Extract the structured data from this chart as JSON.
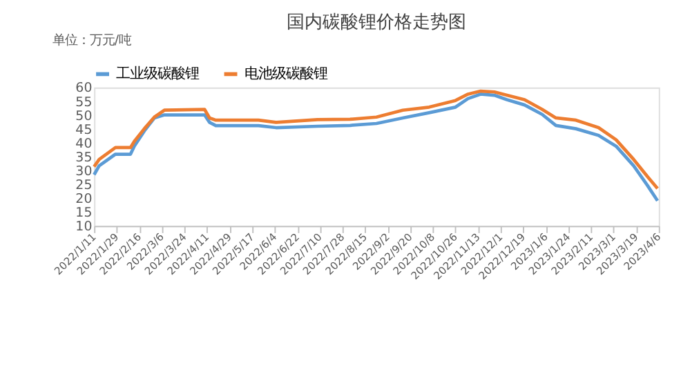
{
  "chart_data": {
    "type": "line",
    "title": "国内碳酸锂价格走势图",
    "annotations": [
      "单位：万元/吨"
    ],
    "x": [
      "2022-01-11",
      "2022-01-15",
      "2022-01-28",
      "2022-02-09",
      "2022-02-12",
      "2022-02-20",
      "2022-02-28",
      "2022-03-08",
      "2022-04-09",
      "2022-04-13",
      "2022-04-18",
      "2022-05-22",
      "2022-06-05",
      "2022-07-08",
      "2022-08-03",
      "2022-08-24",
      "2022-09-14",
      "2022-10-05",
      "2022-10-26",
      "2022-11-05",
      "2022-11-15",
      "2022-11-26",
      "2022-12-06",
      "2022-12-20",
      "2023-01-03",
      "2023-01-14",
      "2023-01-30",
      "2023-02-17",
      "2023-03-03",
      "2023-03-17",
      "2023-03-28",
      "2023-04-05"
    ],
    "series": [
      {
        "name": "工业级碳酸锂",
        "color": "#5b9bd5",
        "values": [
          28.5,
          31.7,
          35.9,
          35.9,
          38.8,
          44.3,
          49,
          50.1,
          50.1,
          47.4,
          46.2,
          46.2,
          45.5,
          46,
          46.3,
          47,
          49,
          50.9,
          52.9,
          56,
          57.6,
          57.2,
          55.6,
          53.7,
          50.3,
          46.3,
          45.1,
          42.7,
          38.8,
          31.7,
          24.6,
          19.1
        ]
      },
      {
        "name": "电池级碳酸锂",
        "color": "#ed7d31",
        "values": [
          31.4,
          34,
          38.3,
          38.3,
          40.5,
          45.1,
          49.3,
          51.8,
          52.1,
          49,
          48.2,
          48.2,
          47.4,
          48.4,
          48.5,
          49.3,
          51.8,
          52.9,
          55.3,
          57.6,
          58.7,
          58.4,
          57.2,
          55.6,
          52.1,
          49,
          48.2,
          45.5,
          41.1,
          34,
          27.8,
          23.5
        ]
      }
    ],
    "xlim": [
      "2022-01-11",
      "2023-04-06"
    ],
    "xticks": [
      {
        "value": "2022-01-11",
        "label": "2022/1/11"
      },
      {
        "value": "2022-01-29",
        "label": "2022/1/29"
      },
      {
        "value": "2022-02-16",
        "label": "2022/2/16"
      },
      {
        "value": "2022-03-06",
        "label": "2022/3/6"
      },
      {
        "value": "2022-03-24",
        "label": "2022/3/24"
      },
      {
        "value": "2022-04-11",
        "label": "2022/4/11"
      },
      {
        "value": "2022-04-29",
        "label": "2022/4/29"
      },
      {
        "value": "2022-05-17",
        "label": "2022/5/17"
      },
      {
        "value": "2022-06-04",
        "label": "2022/6/4"
      },
      {
        "value": "2022-06-22",
        "label": "2022/6/22"
      },
      {
        "value": "2022-07-10",
        "label": "2022/7/10"
      },
      {
        "value": "2022-07-28",
        "label": "2022/7/28"
      },
      {
        "value": "2022-08-15",
        "label": "2022/8/15"
      },
      {
        "value": "2022-09-02",
        "label": "2022/9/2"
      },
      {
        "value": "2022-09-20",
        "label": "2022/9/20"
      },
      {
        "value": "2022-10-08",
        "label": "2022/10/8"
      },
      {
        "value": "2022-10-26",
        "label": "2022/10/26"
      },
      {
        "value": "2022-11-13",
        "label": "2022/11/13"
      },
      {
        "value": "2022-12-01",
        "label": "2022/12/1"
      },
      {
        "value": "2022-12-19",
        "label": "2022/12/19"
      },
      {
        "value": "2023-01-06",
        "label": "2023/1/6"
      },
      {
        "value": "2023-01-24",
        "label": "2023/1/24"
      },
      {
        "value": "2023-02-11",
        "label": "2023/2/11"
      },
      {
        "value": "2023-03-01",
        "label": "2023/3/1"
      },
      {
        "value": "2023-03-19",
        "label": "2023/3/19"
      },
      {
        "value": "2023-04-06",
        "label": "2023/4/6"
      }
    ],
    "ylim": [
      10,
      60
    ],
    "yticks": [
      10,
      15,
      20,
      25,
      30,
      35,
      40,
      45,
      50,
      55,
      60
    ],
    "grid": false,
    "legend": "top",
    "line_style": "solid",
    "marker": "none"
  }
}
